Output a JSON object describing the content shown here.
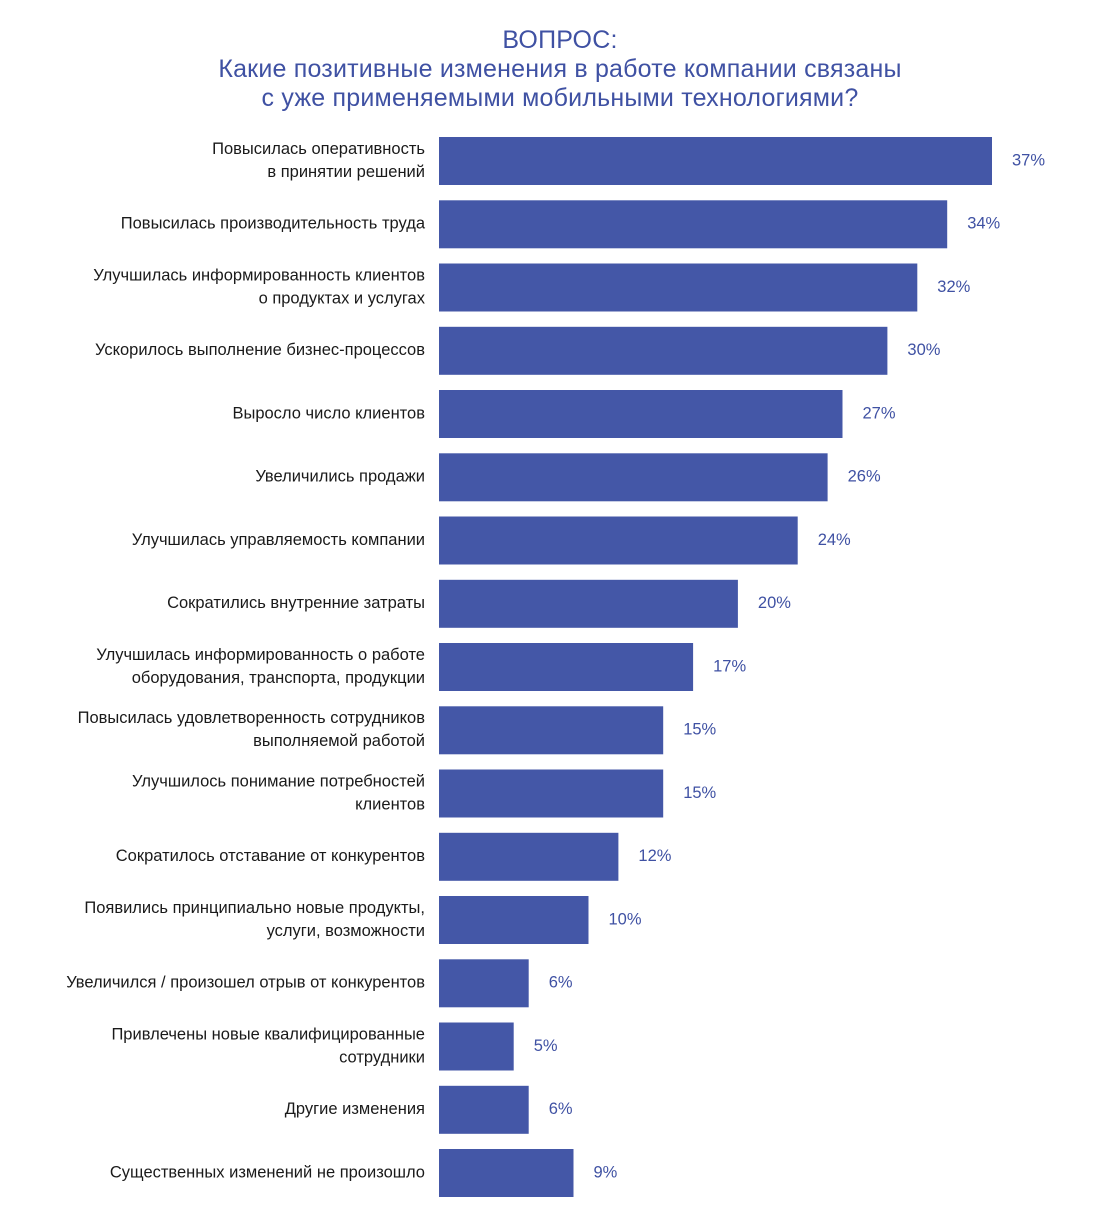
{
  "title": {
    "line1": "ВОПРОС:",
    "line2": "Какие позитивные изменения в работе компании связаны",
    "line3": "с уже применяемыми мобильными технологиями?"
  },
  "colors": {
    "bar": "#4457a7",
    "value_text": "#3f51a3",
    "label_text": "#1a1a1a",
    "title": "#3f51a3"
  },
  "chart_data": {
    "type": "bar",
    "orientation": "horizontal",
    "title": "ВОПРОС: Какие позитивные изменения в работе компании связаны с уже применяемыми мобильными технологиями?",
    "categories": [
      [
        "Повысилась оперативность",
        "в принятии решений"
      ],
      [
        "Повысилась производительность труда"
      ],
      [
        "Улучшилась информированность клиентов",
        "о продуктах и услугах"
      ],
      [
        "Ускорилось выполнение бизнес-процессов"
      ],
      [
        "Выросло число клиентов"
      ],
      [
        "Увеличились продажи"
      ],
      [
        "Улучшилась управляемость компании"
      ],
      [
        "Сократились внутренние затраты"
      ],
      [
        "Улучшилась информированность о работе",
        "оборудования, транспорта, продукции"
      ],
      [
        "Повысилась удовлетворенность сотрудников",
        "выполняемой работой"
      ],
      [
        "Улучшилось понимание потребностей",
        "клиентов"
      ],
      [
        "Сократилось отставание от конкурентов"
      ],
      [
        "Появились принципиально новые продукты,",
        "услуги, возможности"
      ],
      [
        "Увеличился / произошел отрыв от конкурентов"
      ],
      [
        "Привлечены новые квалифицированные",
        "сотрудники"
      ],
      [
        "Другие изменения"
      ],
      [
        "Существенных изменений не произошло"
      ]
    ],
    "values": [
      37,
      34,
      32,
      30,
      27,
      26,
      24,
      20,
      17,
      15,
      15,
      12,
      10,
      6,
      5,
      6,
      9
    ],
    "value_labels": [
      "37%",
      "34%",
      "32%",
      "30%",
      "27%",
      "26%",
      "24%",
      "20%",
      "17%",
      "15%",
      "15%",
      "12%",
      "10%",
      "6%",
      "5%",
      "6%",
      "9%"
    ],
    "unit": "%",
    "xlim": [
      0,
      37
    ],
    "grid": false,
    "legend": "none"
  }
}
